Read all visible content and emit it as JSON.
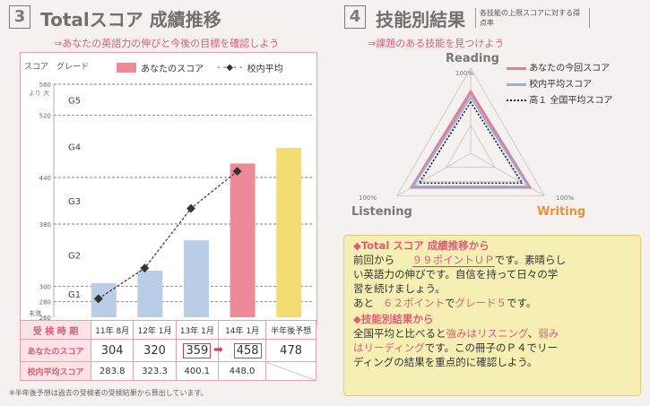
{
  "left": {
    "number": "3",
    "title": "Totalスコア 成績推移",
    "subtitle": "⇒あなたの英語力の伸びと今後の目標を確認しよう",
    "axis_score_label": "スコア",
    "axis_grade_label": "グレード",
    "axis_top_note": "より 大",
    "axis_bottom_note": "未満",
    "legend_you": "あなたのスコア",
    "legend_avg": "校内平均",
    "footnote": "※半年後予想は過去の受検者の受検結果から算出しています。"
  },
  "chart_data": {
    "type": "bar",
    "categories": [
      "11年 8月",
      "12年 1月",
      "13年 1月",
      "14年 1月",
      "半年後予想"
    ],
    "series": [
      {
        "name": "あなたのスコア",
        "values": [
          304,
          320,
          359,
          458,
          478
        ]
      },
      {
        "name": "校内平均",
        "values": [
          283.8,
          323.3,
          400.1,
          448.0,
          null
        ]
      }
    ],
    "bar_colors": [
      "#b9cde6",
      "#b9cde6",
      "#b9cde6",
      "#ec8a9a",
      "#f3dd73"
    ],
    "avg_color": "#333333",
    "ylim": [
      260,
      560
    ],
    "yticks": [
      260,
      280,
      300,
      380,
      440,
      520,
      560
    ],
    "grades": [
      {
        "label": "G1",
        "value": 290
      },
      {
        "label": "G2",
        "value": 340
      },
      {
        "label": "G3",
        "value": 410
      },
      {
        "label": "G4",
        "value": 480
      },
      {
        "label": "G5",
        "value": 540
      }
    ],
    "grid_lines": [
      280,
      300,
      380,
      440,
      520,
      560
    ]
  },
  "table": {
    "row_label_period": "受 検 時 期",
    "row_label_you": "あなたのスコア",
    "row_label_avg": "校内平均スコア",
    "periods": [
      "11年 8月",
      "12年 1月",
      "13年 1月",
      "14年 1月",
      "半年後予想"
    ],
    "you": [
      "304",
      "320",
      "359",
      "458",
      "478"
    ],
    "avg": [
      "283.8",
      "323.3",
      "400.1",
      "448.0",
      ""
    ]
  },
  "right": {
    "number": "4",
    "title": "技能別結果",
    "title_note": "各技能の上限スコアに対する得点率",
    "subtitle": "⇒課題のある技能を見つけよう",
    "label_reading": "Reading",
    "label_listening": "Listening",
    "label_writing": "Writing",
    "pct_top": "100%",
    "pct_left": "100%",
    "pct_right": "100%",
    "legend_current": "あなたの今回スコア",
    "legend_school": "校内平均スコア",
    "legend_national": "高１ 全国平均スコア",
    "radar": {
      "axes": [
        "Reading",
        "Listening",
        "Writing"
      ],
      "current": [
        0.72,
        0.8,
        0.8
      ],
      "school": [
        0.66,
        0.78,
        0.78
      ],
      "national": [
        0.6,
        0.7,
        0.7
      ]
    },
    "colors": {
      "current": "#e87a94",
      "school": "#8fb2e0",
      "national": "#222222"
    }
  },
  "advice": {
    "h1": "◆Total スコア 成績推移から",
    "l1a": "前回から",
    "l1b": "９９ポイントＵＰ",
    "l1c": "です。素晴らし",
    "l2": "い英語力の伸びです。自信を持って日々の学",
    "l3": "習を続けましょう。",
    "l4a": "あと",
    "l4b": "６２ポイント",
    "l4c": "で",
    "l4d": "グレード５",
    "l4e": "です。",
    "h2": "◆技能別結果から",
    "l5a": "全国平均と比べると",
    "l5b": "強みはリスニング",
    "l5c": "、",
    "l5d": "弱み",
    "l6a": "はリーディング",
    "l6b": "です。この冊子のＰ４でリー",
    "l7": "ディングの結果を重点的に確認しよう。"
  }
}
